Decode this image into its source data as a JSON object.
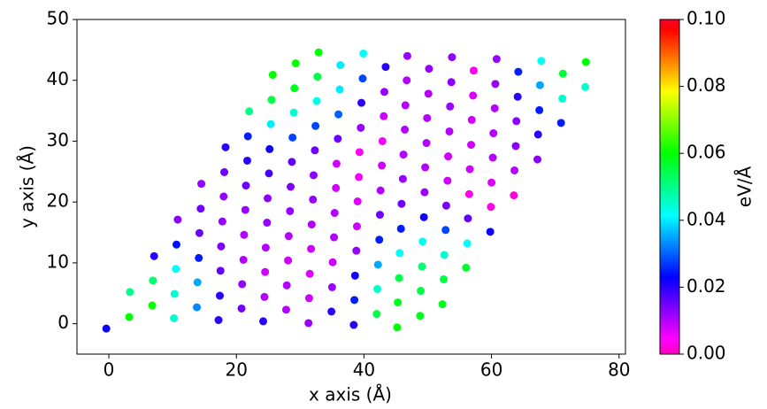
{
  "chart_data": {
    "type": "scatter",
    "xlabel": "x axis (Å)",
    "ylabel": "y axis (Å)",
    "colorbar_label": "eV/Å",
    "xlim": [
      -5,
      81
    ],
    "ylim": [
      -5,
      50
    ],
    "xticks": [
      0,
      20,
      40,
      60,
      80
    ],
    "yticks": [
      0,
      10,
      20,
      30,
      40,
      50
    ],
    "clim": [
      0,
      0.1
    ],
    "colorbar_ticks": [
      {
        "value": 0,
        "label": "0.00"
      },
      {
        "value": 0.02,
        "label": "0.02"
      },
      {
        "value": 0.04,
        "label": "0.04"
      },
      {
        "value": 0.06,
        "label": "0.06"
      },
      {
        "value": 0.08,
        "label": "0.08"
      },
      {
        "value": 0.1,
        "label": "0.10"
      }
    ],
    "colormap_stops": [
      0,
      0.046,
      0.23,
      0.414,
      0.6,
      0.785,
      0.97,
      1
    ],
    "colormap_colors": [
      "#ff00bf",
      "#ff00ff",
      "#0000ff",
      "#00ffff",
      "#00ff00",
      "#ffff00",
      "#ff0000",
      "#ff0029"
    ],
    "x": [
      -0.4,
      3.2,
      3.3,
      6.8,
      6.9,
      7.1,
      10.2,
      10.3,
      10.5,
      10.6,
      10.8,
      13.8,
      13.9,
      14.1,
      14.2,
      14.4,
      14.5,
      17.2,
      17.4,
      17.5,
      17.6,
      17.8,
      18.0,
      18.1,
      18.3,
      20.8,
      20.9,
      21.1,
      21.2,
      21.4,
      21.5,
      21.7,
      21.8,
      22.0,
      24.2,
      24.4,
      24.5,
      24.6,
      24.8,
      24.9,
      25.1,
      25.2,
      25.4,
      25.5,
      25.7,
      27.8,
      27.9,
      28.1,
      28.2,
      28.4,
      28.5,
      28.7,
      28.8,
      29.0,
      29.1,
      29.3,
      31.3,
      31.4,
      31.5,
      31.7,
      31.8,
      32.0,
      32.1,
      32.3,
      32.4,
      32.6,
      32.7,
      32.9,
      34.9,
      35.0,
      35.1,
      35.3,
      35.4,
      35.6,
      35.7,
      35.9,
      36.0,
      36.2,
      36.3,
      38.4,
      38.5,
      38.6,
      38.8,
      38.9,
      39.0,
      39.2,
      39.3,
      39.5,
      39.6,
      39.8,
      39.9,
      42.0,
      42.1,
      42.2,
      42.4,
      42.5,
      42.6,
      42.8,
      42.9,
      43.1,
      43.2,
      43.4,
      45.2,
      45.3,
      45.5,
      45.6,
      45.8,
      45.9,
      46.1,
      46.2,
      46.4,
      46.5,
      46.7,
      46.8,
      48.8,
      48.9,
      49.1,
      49.2,
      49.4,
      49.5,
      49.6,
      49.8,
      49.9,
      50.1,
      50.2,
      52.3,
      52.5,
      52.6,
      52.8,
      52.9,
      53.1,
      53.2,
      53.4,
      53.5,
      53.7,
      53.8,
      56.0,
      56.2,
      56.3,
      56.5,
      56.6,
      56.8,
      56.9,
      57.1,
      57.2,
      59.8,
      59.9,
      60.0,
      60.2,
      60.3,
      60.5,
      60.6,
      60.8,
      63.5,
      63.6,
      63.8,
      63.9,
      64.1,
      64.2,
      67.2,
      67.3,
      67.5,
      67.6,
      67.8,
      70.9,
      71.1,
      71.2,
      74.7,
      74.8
    ],
    "y": [
      -0.8,
      1.1,
      5.2,
      3.0,
      7.1,
      11.1,
      0.9,
      4.9,
      9.0,
      13.0,
      17.1,
      2.7,
      6.8,
      10.8,
      14.9,
      18.9,
      23.0,
      0.6,
      4.6,
      8.7,
      12.7,
      16.8,
      20.9,
      24.9,
      29.0,
      2.5,
      6.5,
      10.5,
      14.6,
      18.7,
      22.7,
      26.8,
      30.8,
      34.9,
      0.4,
      4.4,
      8.5,
      12.5,
      16.6,
      20.6,
      24.7,
      28.7,
      32.8,
      36.8,
      40.9,
      2.3,
      6.3,
      10.4,
      14.4,
      18.5,
      22.5,
      26.6,
      30.6,
      34.7,
      38.7,
      42.8,
      0.1,
      4.2,
      8.2,
      12.3,
      16.3,
      20.4,
      24.4,
      28.5,
      32.5,
      36.6,
      40.6,
      44.6,
      2.0,
      6.0,
      10.1,
      14.2,
      18.2,
      22.3,
      26.3,
      30.4,
      34.4,
      38.5,
      42.5,
      -0.2,
      3.9,
      7.9,
      12.0,
      16.0,
      20.1,
      24.1,
      28.2,
      32.2,
      36.3,
      40.3,
      44.4,
      1.6,
      5.7,
      9.7,
      13.8,
      17.9,
      21.9,
      26.0,
      30.0,
      34.1,
      38.1,
      42.2,
      -0.6,
      3.5,
      7.5,
      11.6,
      15.6,
      19.7,
      23.8,
      27.8,
      31.9,
      35.9,
      40.0,
      44.0,
      1.3,
      5.4,
      9.4,
      13.5,
      17.5,
      21.6,
      25.7,
      29.7,
      33.8,
      37.8,
      41.9,
      3.2,
      7.3,
      11.3,
      15.4,
      19.4,
      23.5,
      27.5,
      31.6,
      35.7,
      39.7,
      43.8,
      9.2,
      13.2,
      17.3,
      21.3,
      25.4,
      29.4,
      33.5,
      37.5,
      41.6,
      15.1,
      19.2,
      23.2,
      27.3,
      31.3,
      35.4,
      39.4,
      43.5,
      21.1,
      25.2,
      29.2,
      33.3,
      37.3,
      41.4,
      27.0,
      31.1,
      35.1,
      39.2,
      43.2,
      33.0,
      37.0,
      41.1,
      38.9,
      43.0
    ],
    "color_values": [
      0.022,
      0.06,
      0.05,
      0.06,
      0.052,
      0.02,
      0.045,
      0.045,
      0.042,
      0.024,
      0.013,
      0.033,
      0.035,
      0.025,
      0.015,
      0.015,
      0.012,
      0.02,
      0.02,
      0.016,
      0.014,
      0.012,
      0.012,
      0.015,
      0.02,
      0.015,
      0.012,
      0.01,
      0.01,
      0.012,
      0.015,
      0.02,
      0.025,
      0.05,
      0.02,
      0.01,
      0.008,
      0.01,
      0.012,
      0.013,
      0.018,
      0.022,
      0.04,
      0.055,
      0.06,
      0.01,
      0.01,
      0.008,
      0.01,
      0.012,
      0.014,
      0.016,
      0.028,
      0.045,
      0.058,
      0.06,
      0.012,
      0.008,
      0.007,
      0.008,
      0.01,
      0.012,
      0.013,
      0.015,
      0.028,
      0.043,
      0.055,
      0.06,
      0.02,
      0.012,
      0.008,
      0.01,
      0.01,
      0.008,
      0.008,
      0.015,
      0.03,
      0.04,
      0.04,
      0.02,
      0.025,
      0.022,
      0.012,
      0.008,
      0.007,
      0.005,
      0.004,
      0.012,
      0.02,
      0.028,
      0.042,
      0.055,
      0.045,
      0.035,
      0.025,
      0.015,
      0.01,
      0.008,
      0.005,
      0.008,
      0.012,
      0.02,
      0.06,
      0.058,
      0.055,
      0.042,
      0.025,
      0.015,
      0.012,
      0.01,
      0.01,
      0.01,
      0.01,
      0.012,
      0.058,
      0.055,
      0.052,
      0.042,
      0.022,
      0.012,
      0.01,
      0.01,
      0.01,
      0.01,
      0.012,
      0.058,
      0.055,
      0.045,
      0.028,
      0.014,
      0.008,
      0.008,
      0.01,
      0.012,
      0.013,
      0.013,
      0.057,
      0.042,
      0.016,
      0.003,
      0.008,
      0.008,
      0.008,
      0.007,
      0.004,
      0.022,
      0.003,
      0.007,
      0.01,
      0.01,
      0.01,
      0.012,
      0.012,
      0.002,
      0.01,
      0.013,
      0.013,
      0.02,
      0.025,
      0.013,
      0.02,
      0.025,
      0.035,
      0.042,
      0.025,
      0.045,
      0.056,
      0.045,
      0.06
    ]
  }
}
